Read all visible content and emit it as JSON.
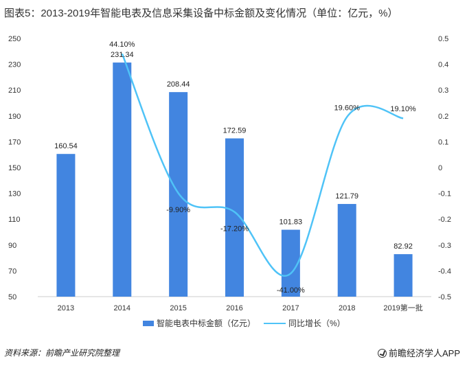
{
  "title": "图表5：2013-2019年智能电表及信息采集设备中标金额及变化情况（单位：亿元，%）",
  "source": "资料来源：前瞻产业研究院整理",
  "brand": "前瞻经济学人APP",
  "colors": {
    "bar": "#4285E0",
    "line": "#4FC3F7",
    "axis": "#CCCCCC"
  },
  "chart_data": {
    "type": "bar",
    "categories": [
      "2013",
      "2014",
      "2015",
      "2016",
      "2017",
      "2018",
      "2019第一批"
    ],
    "series": [
      {
        "name": "智能电表中标金额（亿元）",
        "type": "bar",
        "axis": "left",
        "values": [
          160.54,
          231.34,
          208.44,
          172.59,
          101.83,
          121.79,
          82.92
        ],
        "labels": [
          "160.54",
          "231.34",
          "208.44",
          "172.59",
          "101.83",
          "121.79",
          "82.92"
        ]
      },
      {
        "name": "同比增长（%）",
        "type": "line",
        "axis": "right",
        "values": [
          null,
          0.441,
          -0.099,
          -0.172,
          -0.41,
          0.196,
          0.191
        ],
        "labels": [
          "",
          "44.10%",
          "-9.90%",
          "-17.20%",
          "-41.00%",
          "19.60%",
          "19.10%"
        ]
      }
    ],
    "y_left": {
      "min": 50,
      "max": 250,
      "ticks": [
        "50",
        "70",
        "90",
        "110",
        "130",
        "150",
        "170",
        "190",
        "210",
        "230",
        "250"
      ]
    },
    "y_right": {
      "min": -0.5,
      "max": 0.5,
      "ticks": [
        "-0.5",
        "-0.4",
        "-0.3",
        "-0.2",
        "-0.1",
        "0",
        "0.1",
        "0.2",
        "0.3",
        "0.4",
        "0.5"
      ]
    },
    "legend_position": "bottom"
  }
}
